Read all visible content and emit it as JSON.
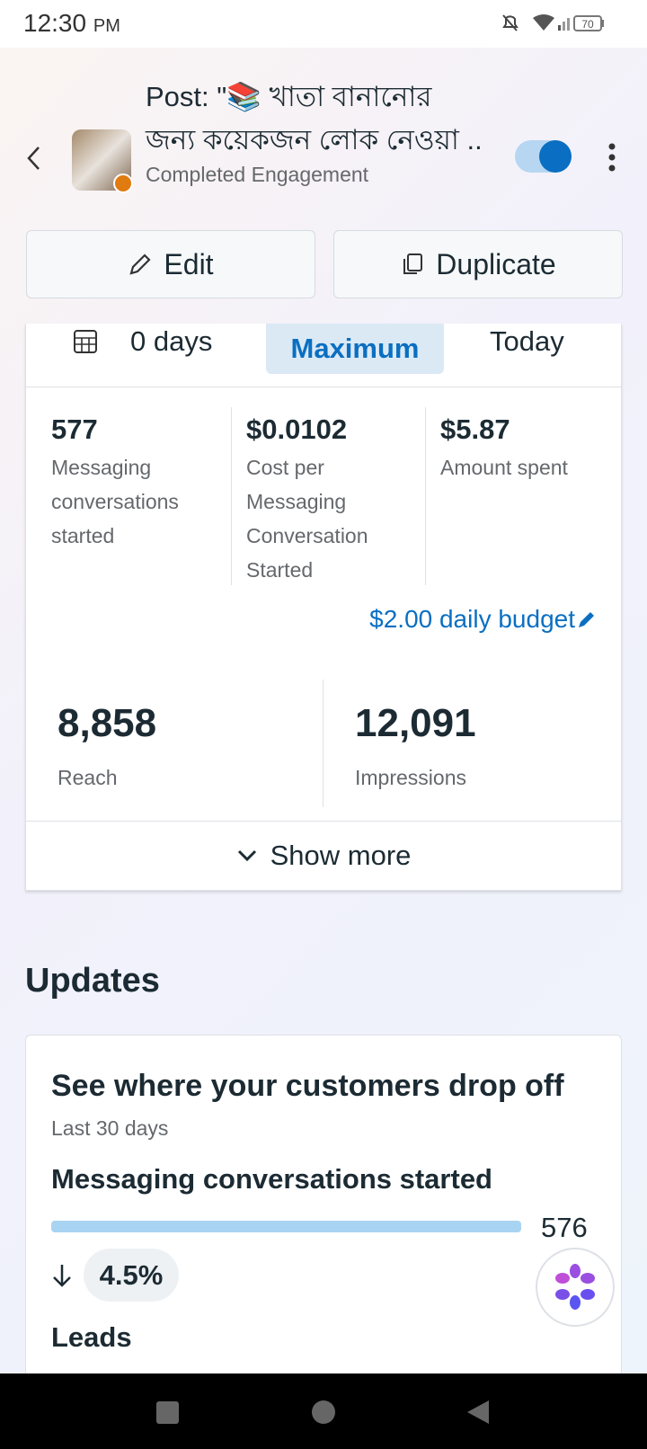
{
  "status_bar": {
    "time": "12:30",
    "period": "PM",
    "battery": "70"
  },
  "header": {
    "title_line1": "Post: \"📚 খাতা বানানোর",
    "title_line2": "জন্য কয়েকজন লোক নেওয়া ..",
    "subtitle": "Completed Engagement"
  },
  "actions": {
    "edit": "Edit",
    "duplicate": "Duplicate"
  },
  "date_tabs": {
    "custom": "0 days",
    "selected": "Maximum",
    "today": "Today"
  },
  "metrics": [
    {
      "value": "577",
      "label": "Messaging conversations started"
    },
    {
      "value": "$0.0102",
      "label": "Cost per Messaging Conversation Started"
    },
    {
      "value": "$5.87",
      "label": "Amount spent"
    }
  ],
  "budget": "$2.00 daily budget",
  "totals": [
    {
      "value": "8,858",
      "label": "Reach"
    },
    {
      "value": "12,091",
      "label": "Impressions"
    }
  ],
  "show_more": "Show more",
  "updates": {
    "heading": "Updates",
    "card_title": "See where your customers drop off",
    "period": "Last 30 days",
    "step1_name": "Messaging conversations started",
    "step1_value": "576",
    "drop": "4.5%",
    "step2_name": "Leads"
  }
}
